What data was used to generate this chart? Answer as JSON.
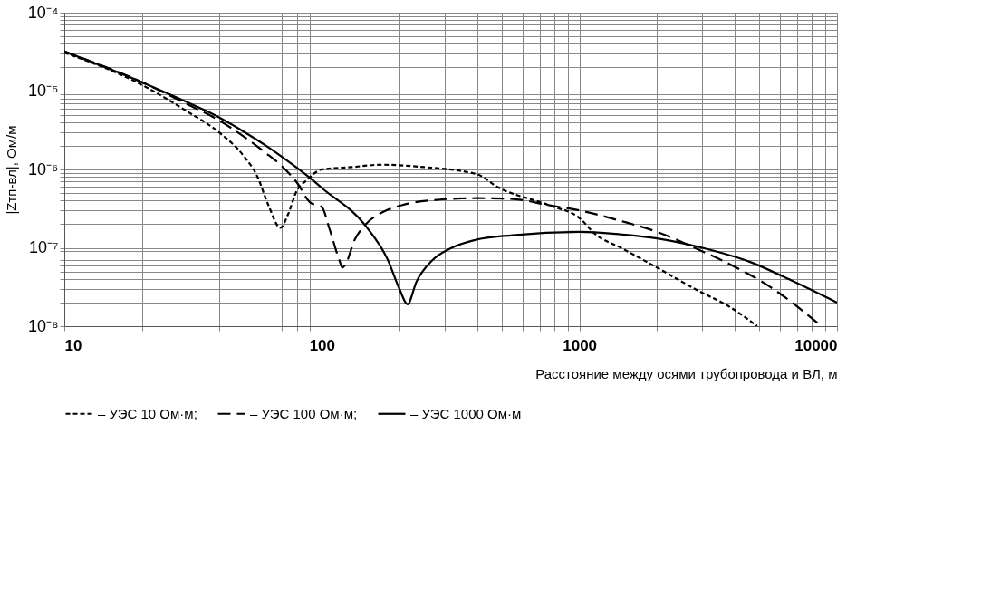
{
  "chart_data": {
    "type": "line",
    "xlabel": "Расстояние между осями трубопровода и ВЛ, м",
    "ylabel": "|Zтп-вл|, Ом/м",
    "log": "xy",
    "grid": true,
    "legend": "bottom",
    "marker": "none",
    "xlim": [
      10,
      10000
    ],
    "ylim": [
      1e-08,
      0.0001
    ],
    "xticks": [
      10,
      {
        "value": 20,
        "label": null
      },
      {
        "value": 30,
        "label": null
      },
      {
        "value": 40,
        "label": null
      },
      {
        "value": 50,
        "label": null
      },
      {
        "value": 60,
        "label": null
      },
      {
        "value": 70,
        "label": null
      },
      {
        "value": 80,
        "label": null
      },
      {
        "value": 90,
        "label": null
      },
      100,
      {
        "value": 200,
        "label": null
      },
      {
        "value": 300,
        "label": null
      },
      {
        "value": 400,
        "label": null
      },
      {
        "value": 500,
        "label": null
      },
      {
        "value": 600,
        "label": null
      },
      {
        "value": 700,
        "label": null
      },
      {
        "value": 800,
        "label": null
      },
      {
        "value": 900,
        "label": null
      },
      1000,
      {
        "value": 2000,
        "label": null
      },
      {
        "value": 3000,
        "label": null
      },
      {
        "value": 4000,
        "label": null
      },
      {
        "value": 5000,
        "label": null
      },
      {
        "value": 6000,
        "label": null
      },
      {
        "value": 7000,
        "label": null
      },
      {
        "value": 8000,
        "label": null
      },
      {
        "value": 9000,
        "label": null
      },
      10000
    ],
    "yticks": [
      {
        "value": 1e-08,
        "label": "10⁻⁸"
      },
      {
        "value": 2e-08,
        "label": null
      },
      {
        "value": 3e-08,
        "label": null
      },
      {
        "value": 4e-08,
        "label": null
      },
      {
        "value": 5e-08,
        "label": null
      },
      {
        "value": 6e-08,
        "label": null
      },
      {
        "value": 7e-08,
        "label": null
      },
      {
        "value": 8e-08,
        "label": null
      },
      {
        "value": 9e-08,
        "label": null
      },
      {
        "value": 1e-07,
        "label": "10⁻⁷"
      },
      {
        "value": 2e-07,
        "label": null
      },
      {
        "value": 3e-07,
        "label": null
      },
      {
        "value": 4e-07,
        "label": null
      },
      {
        "value": 5e-07,
        "label": null
      },
      {
        "value": 6e-07,
        "label": null
      },
      {
        "value": 7e-07,
        "label": null
      },
      {
        "value": 8e-07,
        "label": null
      },
      {
        "value": 9e-07,
        "label": null
      },
      {
        "value": 1e-06,
        "label": "10⁻⁶"
      },
      {
        "value": 2e-06,
        "label": null
      },
      {
        "value": 3e-06,
        "label": null
      },
      {
        "value": 4e-06,
        "label": null
      },
      {
        "value": 5e-06,
        "label": null
      },
      {
        "value": 6e-06,
        "label": null
      },
      {
        "value": 7e-06,
        "label": null
      },
      {
        "value": 8e-06,
        "label": null
      },
      {
        "value": 9e-06,
        "label": null
      },
      {
        "value": 1e-05,
        "label": "10⁻⁵"
      },
      {
        "value": 2e-05,
        "label": null
      },
      {
        "value": 3e-05,
        "label": null
      },
      {
        "value": 4e-05,
        "label": null
      },
      {
        "value": 5e-05,
        "label": null
      },
      {
        "value": 6e-05,
        "label": null
      },
      {
        "value": 7e-05,
        "label": null
      },
      {
        "value": 8e-05,
        "label": null
      },
      {
        "value": 9e-05,
        "label": null
      },
      {
        "value": 0.0001,
        "label": "10⁻⁴"
      }
    ],
    "series": [
      {
        "name": "– УЭС 10 Ом·м;",
        "color": "#000000",
        "line_style": "dotted",
        "x": [
          10,
          20,
          30,
          40,
          50,
          56,
          62,
          69,
          74,
          80,
          87,
          100,
          130,
          170,
          250,
          400,
          480,
          760,
          1000,
          1150,
          1450,
          2000,
          2800,
          3900,
          4900
        ],
        "values": [
          3.1e-05,
          1.2e-05,
          5.5e-06,
          2.95e-06,
          1.45e-06,
          8.3e-07,
          3.5e-07,
          1.8e-07,
          2.7e-07,
          5.4e-07,
          7.2e-07,
          1e-06,
          1.07e-06,
          1.15e-06,
          1.07e-06,
          8.7e-07,
          6e-07,
          3.5e-07,
          2.4e-07,
          1.5e-07,
          1e-07,
          5.6e-08,
          3e-08,
          1.7e-08,
          1e-08
        ]
      },
      {
        "name": "– УЭС 100 Ом·м;",
        "color": "#000000",
        "line_style": "dashed",
        "x": [
          10,
          20,
          30,
          40,
          50,
          60,
          70,
          80,
          90,
          100,
          107,
          117,
          120,
          123,
          134,
          148,
          174,
          204,
          282,
          398,
          550,
          760,
          1050,
          1450,
          2000,
          2800,
          3900,
          5400,
          8700
        ],
        "values": [
          3.2e-05,
          1.3e-05,
          6.8e-06,
          4.2e-06,
          2.6e-06,
          1.66e-06,
          1.1e-06,
          6.8e-07,
          3.8e-07,
          3.3e-07,
          1.75e-07,
          6.9e-08,
          5.6e-08,
          6e-08,
          1.26e-07,
          2e-07,
          2.9e-07,
          3.5e-07,
          4.1e-07,
          4.3e-07,
          4.2e-07,
          3.5e-07,
          2.9e-07,
          2.2e-07,
          1.6e-07,
          1e-07,
          6e-08,
          3.3e-08,
          1e-08
        ]
      },
      {
        "name": "– УЭС 1000 Ом·м",
        "color": "#000000",
        "line_style": "solid",
        "x": [
          10,
          20,
          30,
          40,
          50,
          60,
          70,
          80,
          90,
          100,
          148,
          180,
          200,
          215,
          233,
          268,
          315,
          394,
          550,
          1000,
          1450,
          2000,
          3000,
          4600,
          6800,
          10000
        ],
        "values": [
          3.2e-05,
          1.3e-05,
          7.2e-06,
          4.6e-06,
          3e-06,
          2.06e-06,
          1.45e-06,
          1.05e-06,
          7.8e-07,
          5.8e-07,
          1.9e-07,
          7.1e-08,
          3e-08,
          1.9e-08,
          3.7e-08,
          6.9e-08,
          9.8e-08,
          1.26e-07,
          1.45e-07,
          1.6e-07,
          1.48e-07,
          1.32e-07,
          1e-07,
          6.6e-08,
          3.7e-08,
          2e-08
        ]
      }
    ]
  }
}
